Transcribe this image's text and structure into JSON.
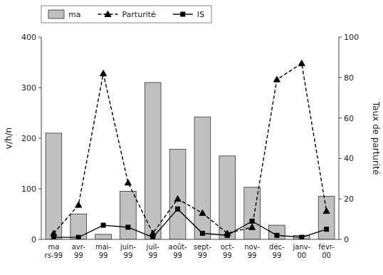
{
  "chart_data": {
    "type": "bar",
    "categories": [
      "ma\nrs-99",
      "avr-\n99",
      "mai-\n99",
      "juin-\n99",
      "juil-\n99",
      "août-\n99",
      "sept-\n99",
      "oct-\n99",
      "nov-\n99",
      "déc-\n99",
      "janv-\n00",
      "févr-\n00"
    ],
    "series": [
      {
        "name": "ma",
        "type": "bar",
        "color": "#c0c0c0",
        "values": [
          210,
          50,
          10,
          95,
          310,
          178,
          242,
          165,
          103,
          28,
          8,
          85
        ]
      },
      {
        "name": "Parturité",
        "type": "line",
        "axis": "y2",
        "color": "#000000",
        "marker": "triangle",
        "line_style": "dashed",
        "values": [
          3,
          17,
          82,
          28,
          3,
          20,
          13,
          3,
          6,
          79,
          87,
          14
        ]
      },
      {
        "name": "IS",
        "type": "line",
        "axis": "y2",
        "color": "#000000",
        "marker": "square",
        "line_style": "solid",
        "values": [
          1,
          1,
          7,
          6,
          1,
          15,
          3,
          2,
          9,
          2,
          1,
          5
        ]
      }
    ],
    "ylabel": "v/h/n",
    "y2label": "Taux de parturité",
    "ylim": [
      0,
      400
    ],
    "yticks": [
      0,
      100,
      200,
      300,
      400
    ],
    "y2lim": [
      0,
      100
    ],
    "y2ticks": [
      0,
      20,
      40,
      60,
      80,
      100
    ],
    "legend": "top"
  }
}
